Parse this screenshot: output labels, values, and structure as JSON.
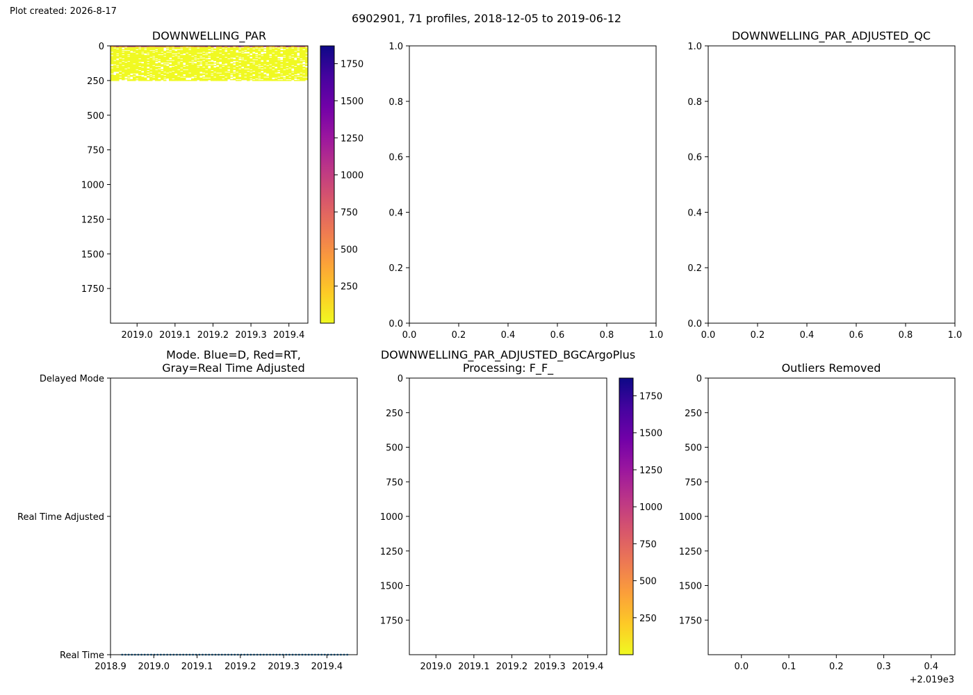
{
  "figure": {
    "created_note": "Plot created: 2026-8-17",
    "suptitle": "6902901, 71 profiles, 2018-12-05 to 2019-06-12"
  },
  "colors": {
    "plasma_stops": [
      "#0d0887",
      "#46039f",
      "#7201a8",
      "#9c179e",
      "#bd3786",
      "#d8576b",
      "#ed7953",
      "#fb9f3a",
      "#fdca26",
      "#f0f921"
    ],
    "mode_line": "#1f77b4",
    "axes": "#000000"
  },
  "chart_data": [
    {
      "id": "downwelling-par",
      "type": "heatmap",
      "title": "DOWNWELLING_PAR",
      "xlim": [
        2018.93,
        2019.45
      ],
      "ylim": [
        2000,
        0
      ],
      "xticks": [
        2019.0,
        2019.1,
        2019.2,
        2019.3,
        2019.4
      ],
      "xtick_labels": [
        "2019.0",
        "2019.1",
        "2019.2",
        "2019.3",
        "2019.4"
      ],
      "yticks": [
        0,
        250,
        500,
        750,
        1000,
        1250,
        1500,
        1750
      ],
      "ytick_labels": [
        "0",
        "250",
        "500",
        "750",
        "1000",
        "1250",
        "1500",
        "1750"
      ],
      "filled_depth_range": [
        0,
        250
      ],
      "surface_max_band": [
        0,
        8
      ],
      "dominant_value": 0,
      "colorbar": {
        "range": [
          0,
          1870
        ],
        "ticks": [
          250,
          500,
          750,
          1000,
          1250,
          1500,
          1750
        ],
        "tick_labels": [
          "250",
          "500",
          "750",
          "1000",
          "1250",
          "1500",
          "1750"
        ],
        "colormap": "plasma_r"
      }
    },
    {
      "id": "downwelling-par-adjusted",
      "type": "empty",
      "title": "",
      "xlim": [
        0,
        1
      ],
      "ylim": [
        0,
        1
      ],
      "xticks": [
        0.0,
        0.2,
        0.4,
        0.6,
        0.8,
        1.0
      ],
      "xtick_labels": [
        "0.0",
        "0.2",
        "0.4",
        "0.6",
        "0.8",
        "1.0"
      ],
      "yticks": [
        0.0,
        0.2,
        0.4,
        0.6,
        0.8,
        1.0
      ],
      "ytick_labels": [
        "0.0",
        "0.2",
        "0.4",
        "0.6",
        "0.8",
        "1.0"
      ]
    },
    {
      "id": "downwelling-par-adjusted-qc",
      "type": "empty",
      "title": "DOWNWELLING_PAR_ADJUSTED_QC",
      "xlim": [
        0,
        1
      ],
      "ylim": [
        0,
        1
      ],
      "xticks": [
        0.0,
        0.2,
        0.4,
        0.6,
        0.8,
        1.0
      ],
      "xtick_labels": [
        "0.0",
        "0.2",
        "0.4",
        "0.6",
        "0.8",
        "1.0"
      ],
      "yticks": [
        0.0,
        0.2,
        0.4,
        0.6,
        0.8,
        1.0
      ],
      "ytick_labels": [
        "0.0",
        "0.2",
        "0.4",
        "0.6",
        "0.8",
        "1.0"
      ]
    },
    {
      "id": "mode",
      "type": "scatter",
      "title": "Mode. Blue=D, Red=RT,",
      "title_line2": "Gray=Real Time Adjusted",
      "xlim": [
        2018.9,
        2019.47
      ],
      "ylim": [
        0,
        2
      ],
      "xticks": [
        2018.9,
        2019.0,
        2019.1,
        2019.2,
        2019.3,
        2019.4
      ],
      "xtick_labels": [
        "2018.9",
        "2019.0",
        "2019.1",
        "2019.2",
        "2019.3",
        "2019.4"
      ],
      "yticks": [
        0,
        1,
        2
      ],
      "ytick_labels": [
        "Real Time",
        "Real Time Adjusted",
        "Delayed Mode"
      ],
      "series": [
        {
          "x_range": [
            2018.927,
            2019.447
          ],
          "y": 0,
          "count": 71
        }
      ]
    },
    {
      "id": "downwelling-par-adjusted-bgcargoplus",
      "type": "heatmap",
      "title": "DOWNWELLING_PAR_ADJUSTED_BGCArgoPlus",
      "title_line2": "Processing: F_F_",
      "xlim": [
        2018.93,
        2019.45
      ],
      "ylim": [
        2000,
        0
      ],
      "xticks": [
        2019.0,
        2019.1,
        2019.2,
        2019.3,
        2019.4
      ],
      "xtick_labels": [
        "2019.0",
        "2019.1",
        "2019.2",
        "2019.3",
        "2019.4"
      ],
      "yticks": [
        0,
        250,
        500,
        750,
        1000,
        1250,
        1500,
        1750
      ],
      "ytick_labels": [
        "0",
        "250",
        "500",
        "750",
        "1000",
        "1250",
        "1500",
        "1750"
      ],
      "colorbar": {
        "range": [
          0,
          1870
        ],
        "ticks": [
          250,
          500,
          750,
          1000,
          1250,
          1500,
          1750
        ],
        "tick_labels": [
          "250",
          "500",
          "750",
          "1000",
          "1250",
          "1500",
          "1750"
        ],
        "colormap": "plasma_r"
      }
    },
    {
      "id": "outliers-removed",
      "type": "empty",
      "title": "Outliers Removed",
      "xlim": [
        -0.07,
        0.45
      ],
      "ylim": [
        2000,
        0
      ],
      "xticks": [
        0.0,
        0.1,
        0.2,
        0.3,
        0.4
      ],
      "xtick_labels": [
        "0.0",
        "0.1",
        "0.2",
        "0.3",
        "0.4"
      ],
      "offset_label": "+2.019e3",
      "yticks": [
        0,
        250,
        500,
        750,
        1000,
        1250,
        1500,
        1750
      ],
      "ytick_labels": [
        "0",
        "250",
        "500",
        "750",
        "1000",
        "1250",
        "1500",
        "1750"
      ]
    }
  ]
}
